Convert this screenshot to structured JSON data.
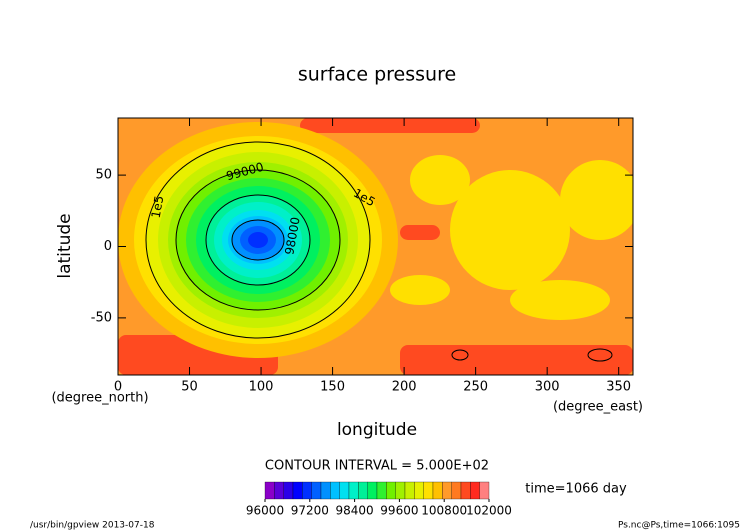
{
  "chart_data": {
    "type": "contour",
    "title": "surface pressure",
    "xlabel": "longitude",
    "ylabel": "latitude",
    "xunit": "(degree_east)",
    "yunit": "(degree_north)",
    "xlim": [
      0,
      360
    ],
    "xticks": [
      0,
      50,
      100,
      150,
      200,
      250,
      300,
      350
    ],
    "ylim": [
      -90,
      90
    ],
    "yticks": [
      -50,
      0,
      50
    ],
    "contour_labels": [
      "99000",
      "98000",
      "1e5",
      "1e5"
    ],
    "contour_interval": "CONTOUR INTERVAL = 5.000E+02",
    "time_label": "time=1066 day",
    "colorbar": {
      "clim": [
        96000,
        102000
      ],
      "ticks": [
        96000,
        97200,
        98400,
        99600,
        100800,
        102000
      ],
      "colors": [
        "#8a00c8",
        "#5a00d8",
        "#2a00e8",
        "#0000ff",
        "#0030ff",
        "#0060ff",
        "#0090ff",
        "#00c0ff",
        "#00e0f0",
        "#00f0c8",
        "#00f098",
        "#00f060",
        "#30f030",
        "#70f000",
        "#a0f000",
        "#c8f000",
        "#e8f000",
        "#ffe000",
        "#ffc000",
        "#ff9a2a",
        "#ff7a20",
        "#ff4a20",
        "#ff2a20",
        "#ff8080"
      ]
    },
    "footer_left": "/usr/bin/gpview  2013-07-18",
    "footer_right": "Ps.nc@Ps,time=1066:1095"
  }
}
